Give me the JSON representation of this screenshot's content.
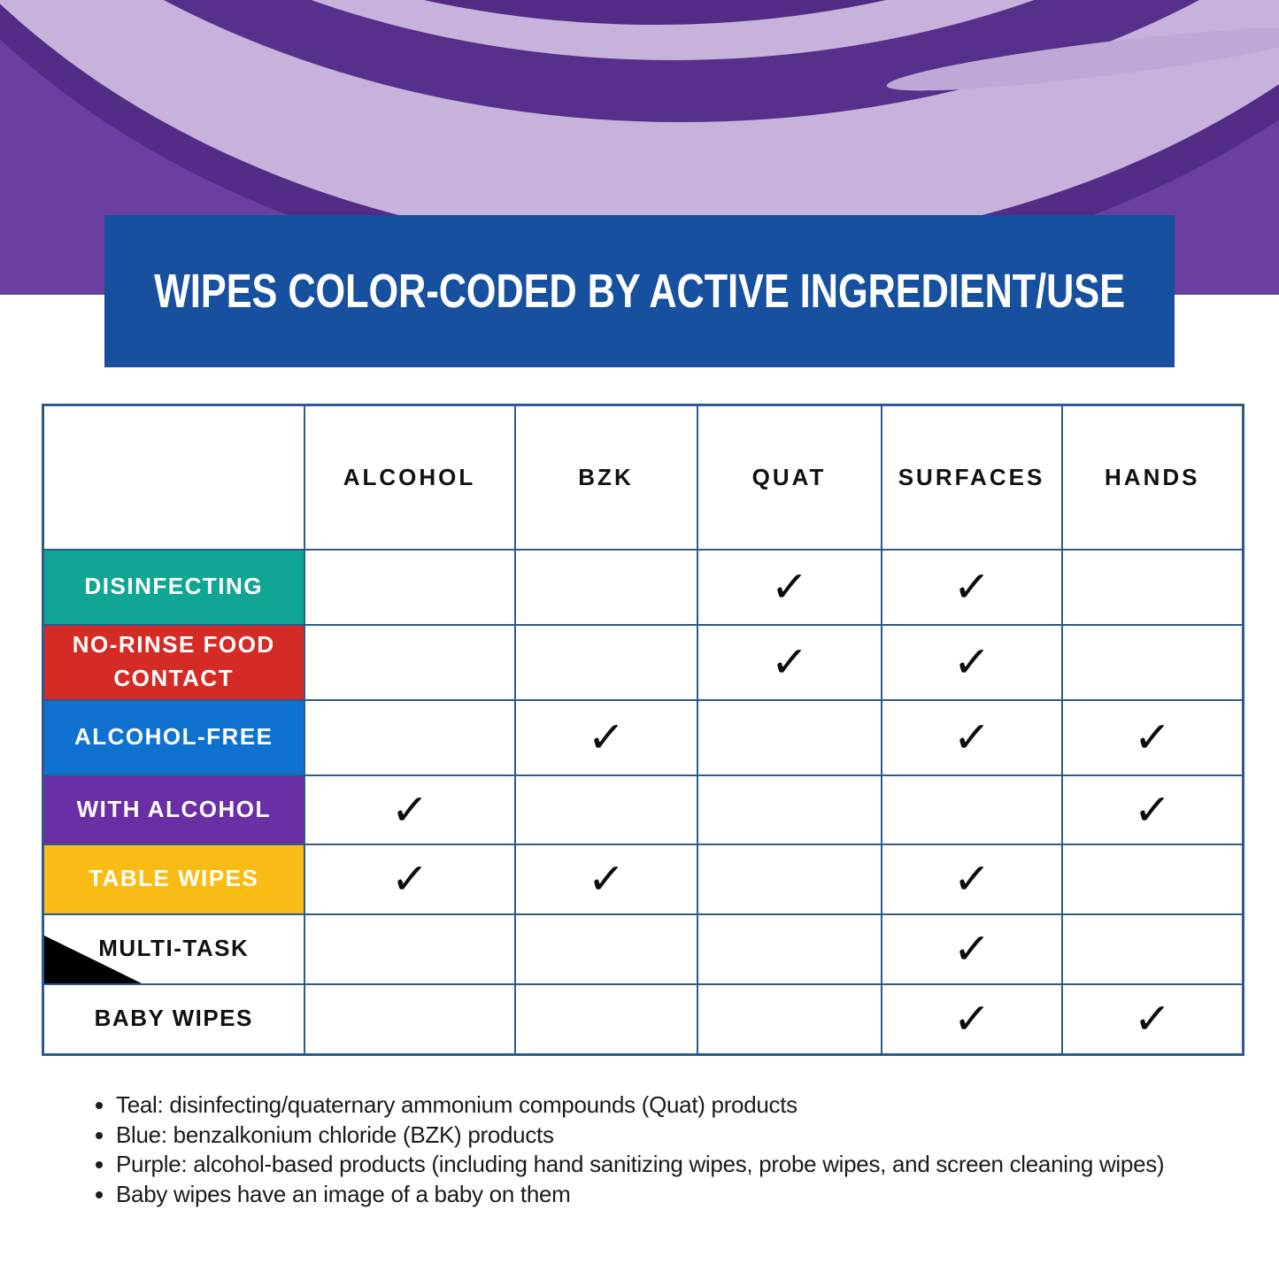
{
  "banner": {
    "title": "WIPES COLOR-CODED BY ACTIVE INGREDIENT/USE",
    "background": "#17509e"
  },
  "table": {
    "check_glyph": "✓",
    "columns": [
      "ALCOHOL",
      "BZK",
      "QUAT",
      "SURFACES",
      "HANDS"
    ],
    "rows": [
      {
        "label": "DISINFECTING",
        "color": "#11a694",
        "text_color": "#ffffff",
        "corner_triangle": false,
        "checks": [
          false,
          false,
          true,
          true,
          false
        ]
      },
      {
        "label": "NO-RINSE FOOD CONTACT",
        "color": "#d52b27",
        "text_color": "#ffffff",
        "corner_triangle": false,
        "checks": [
          false,
          false,
          true,
          true,
          false
        ]
      },
      {
        "label": "ALCOHOL-FREE",
        "color": "#0f72d0",
        "text_color": "#ffffff",
        "corner_triangle": false,
        "checks": [
          false,
          true,
          false,
          true,
          true
        ]
      },
      {
        "label": "WITH ALCOHOL",
        "color": "#6a2fa4",
        "text_color": "#ffffff",
        "corner_triangle": false,
        "checks": [
          true,
          false,
          false,
          false,
          true
        ]
      },
      {
        "label": "TABLE WIPES",
        "color": "#f9bc15",
        "text_color": "#ffffff",
        "corner_triangle": false,
        "checks": [
          true,
          true,
          false,
          true,
          false
        ]
      },
      {
        "label": "MULTI-TASK",
        "color": "#ffffff",
        "text_color": "#111111",
        "corner_triangle": true,
        "checks": [
          false,
          false,
          false,
          true,
          false
        ]
      },
      {
        "label": "BABY WIPES",
        "color": "#ffffff",
        "text_color": "#111111",
        "corner_triangle": false,
        "checks": [
          false,
          false,
          false,
          true,
          true
        ]
      }
    ]
  },
  "notes": [
    "Teal: disinfecting/quaternary ammonium compounds (Quat) products",
    "Blue: benzalkonium chloride (BZK) products",
    "Purple: alcohol-based products (including hand sanitizing wipes, probe wipes, and screen cleaning wipes)",
    "Baby wipes have an image of a baby on them"
  ],
  "colors": {
    "hero_purple": "#6b3fa0",
    "hero_dark_purple": "#532c85",
    "hero_lavender": "#c7b2dc",
    "table_border": "#2b5a8e",
    "teal": "#11a694",
    "red": "#d52b27",
    "blue": "#0f72d0",
    "purple": "#6a2fa4",
    "yellow": "#f9bc15"
  }
}
